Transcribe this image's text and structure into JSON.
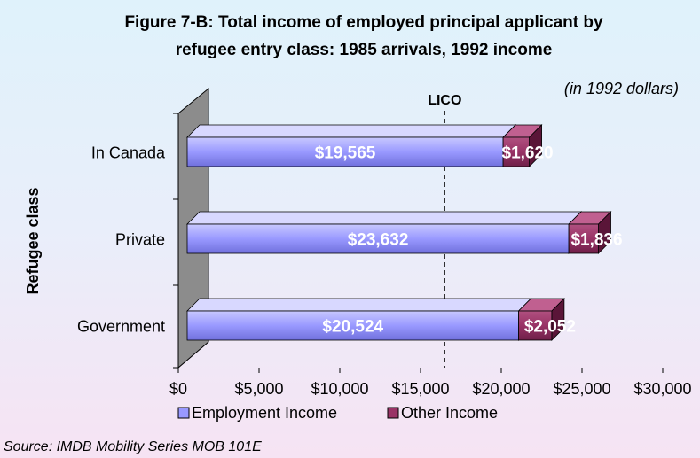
{
  "chart_data": {
    "type": "bar",
    "orientation": "horizontal",
    "stacked": true,
    "title": "Figure 7-B: Total income of employed principal applicant by refugee entry class: 1985 arrivals, 1992 income",
    "subtitle": "(in 1992 dollars)",
    "y_label": "Refugee class",
    "source": "Source: IMDB Mobility Series MOB  101E",
    "categories": [
      "In Canada",
      "Private",
      "Government"
    ],
    "series": [
      {
        "name": "Employment Income",
        "color": "#9999ff",
        "values": [
          19565,
          23632,
          20524
        ],
        "value_labels": [
          "$19,565",
          "$23,632",
          "$20,524"
        ]
      },
      {
        "name": "Other Income",
        "color": "#993366",
        "values": [
          1620,
          1836,
          2052
        ],
        "value_labels": [
          "$1,620",
          "$1,836",
          "$2,052"
        ]
      }
    ],
    "xlim": [
      0,
      30000
    ],
    "xticks": [
      {
        "value": 0,
        "label": "$0"
      },
      {
        "value": 5000,
        "label": "$5,000"
      },
      {
        "value": 10000,
        "label": "$10,000"
      },
      {
        "value": 15000,
        "label": "$15,000"
      },
      {
        "value": 20000,
        "label": "$20,000"
      },
      {
        "value": 25000,
        "label": "$25,000"
      },
      {
        "value": 30000,
        "label": "$30,000"
      }
    ],
    "reference_line": {
      "label": "LICO",
      "value": 16500
    },
    "legend": "bottom"
  }
}
